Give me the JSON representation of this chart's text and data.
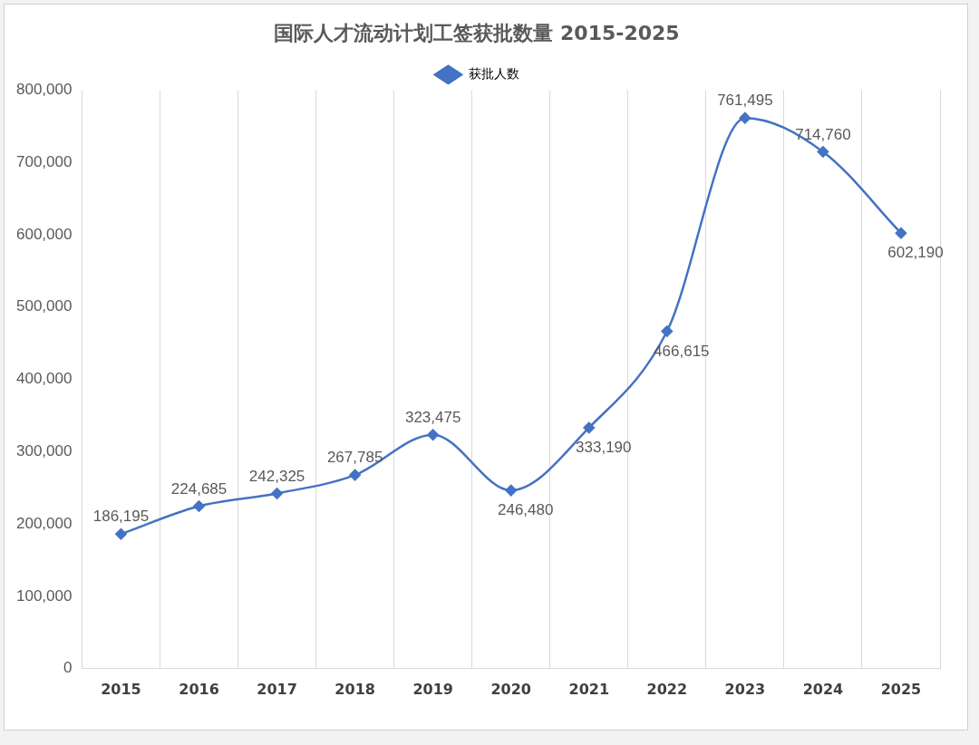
{
  "chart_data": {
    "type": "line",
    "title": "国际人才流动计划工签获批数量 2015-2025",
    "categories": [
      "2015",
      "2016",
      "2017",
      "2018",
      "2019",
      "2020",
      "2021",
      "2022",
      "2023",
      "2024",
      "2025"
    ],
    "series": [
      {
        "name": "获批人数",
        "color": "#4472c4",
        "values": [
          186195,
          224685,
          242325,
          267785,
          323475,
          246480,
          333190,
          466615,
          761495,
          714760,
          602190
        ],
        "value_labels": [
          "186,195",
          "224,685",
          "242,325",
          "267,785",
          "323,475",
          "246,480",
          "333,190",
          "466,615",
          "761,495",
          "714,760",
          "602,190"
        ]
      }
    ],
    "ylim": [
      0,
      800000
    ],
    "yticks": [
      {
        "value": 0,
        "label": "0"
      },
      {
        "value": 100000,
        "label": "100,000"
      },
      {
        "value": 200000,
        "label": "200,000"
      },
      {
        "value": 300000,
        "label": "300,000"
      },
      {
        "value": 400000,
        "label": "400,000"
      },
      {
        "value": 500000,
        "label": "500,000"
      },
      {
        "value": 600000,
        "label": "600,000"
      },
      {
        "value": 700000,
        "label": "700,000"
      },
      {
        "value": 800000,
        "label": "800,000"
      }
    ],
    "grid": "x",
    "legend": "top",
    "marker": "diamond",
    "line_style": "solid"
  }
}
